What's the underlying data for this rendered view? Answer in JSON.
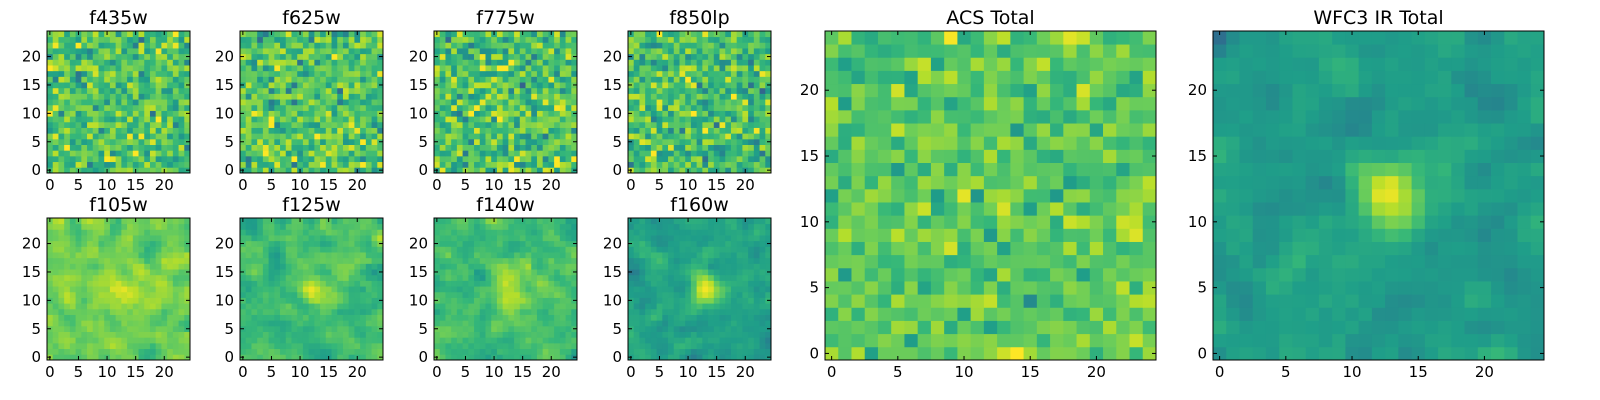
{
  "figure": {
    "colormap": "viridis"
  },
  "chart_data": [
    {
      "type": "heatmap",
      "title": "f435w",
      "grid_size": 25,
      "xlim": [
        -0.5,
        24.5
      ],
      "ylim": [
        -0.5,
        24.5
      ],
      "xticks": [
        0,
        5,
        10,
        15,
        20
      ],
      "yticks": [
        0,
        5,
        10,
        15,
        20
      ],
      "texture": "noise",
      "mean": 0.72,
      "spread": 0.24,
      "source": null,
      "seed": 11
    },
    {
      "type": "heatmap",
      "title": "f625w",
      "grid_size": 25,
      "xlim": [
        -0.5,
        24.5
      ],
      "ylim": [
        -0.5,
        24.5
      ],
      "xticks": [
        0,
        5,
        10,
        15,
        20
      ],
      "yticks": [
        0,
        5,
        10,
        15,
        20
      ],
      "texture": "noise",
      "mean": 0.72,
      "spread": 0.24,
      "source": null,
      "seed": 23
    },
    {
      "type": "heatmap",
      "title": "f775w",
      "grid_size": 25,
      "xlim": [
        -0.5,
        24.5
      ],
      "ylim": [
        -0.5,
        24.5
      ],
      "xticks": [
        0,
        5,
        10,
        15,
        20
      ],
      "yticks": [
        0,
        5,
        10,
        15,
        20
      ],
      "texture": "noise",
      "mean": 0.72,
      "spread": 0.26,
      "source": null,
      "seed": 37
    },
    {
      "type": "heatmap",
      "title": "f850lp",
      "grid_size": 25,
      "xlim": [
        -0.5,
        24.5
      ],
      "ylim": [
        -0.5,
        24.5
      ],
      "xticks": [
        0,
        5,
        10,
        15,
        20
      ],
      "yticks": [
        0,
        5,
        10,
        15,
        20
      ],
      "texture": "noise",
      "mean": 0.7,
      "spread": 0.26,
      "source": null,
      "seed": 41
    },
    {
      "type": "heatmap",
      "title": "f105w",
      "grid_size": 25,
      "xlim": [
        -0.5,
        24.5
      ],
      "ylim": [
        -0.5,
        24.5
      ],
      "xticks": [
        0,
        5,
        10,
        15,
        20
      ],
      "yticks": [
        0,
        5,
        10,
        15,
        20
      ],
      "texture": "smooth",
      "mean": 0.78,
      "spread": 0.18,
      "source": {
        "x": 13,
        "y": 12,
        "sigma": 2.2,
        "amp": 0.15
      },
      "seed": 53
    },
    {
      "type": "heatmap",
      "title": "f125w",
      "grid_size": 25,
      "xlim": [
        -0.5,
        24.5
      ],
      "ylim": [
        -0.5,
        24.5
      ],
      "xticks": [
        0,
        5,
        10,
        15,
        20
      ],
      "yticks": [
        0,
        5,
        10,
        15,
        20
      ],
      "texture": "smooth",
      "mean": 0.68,
      "spread": 0.18,
      "source": {
        "x": 13,
        "y": 11.5,
        "sigma": 2.2,
        "amp": 0.22
      },
      "seed": 61
    },
    {
      "type": "heatmap",
      "title": "f140w",
      "grid_size": 25,
      "xlim": [
        -0.5,
        24.5
      ],
      "ylim": [
        -0.5,
        24.5
      ],
      "xticks": [
        0,
        5,
        10,
        15,
        20
      ],
      "yticks": [
        0,
        5,
        10,
        15,
        20
      ],
      "texture": "smooth",
      "mean": 0.7,
      "spread": 0.18,
      "source": {
        "x": 13,
        "y": 12,
        "sigma": 2.0,
        "amp": 0.22
      },
      "seed": 73
    },
    {
      "type": "heatmap",
      "title": "f160w",
      "grid_size": 25,
      "xlim": [
        -0.5,
        24.5
      ],
      "ylim": [
        -0.5,
        24.5
      ],
      "xticks": [
        0,
        5,
        10,
        15,
        20
      ],
      "yticks": [
        0,
        5,
        10,
        15,
        20
      ],
      "texture": "smooth",
      "mean": 0.58,
      "spread": 0.16,
      "source": {
        "x": 13,
        "y": 12,
        "sigma": 1.8,
        "amp": 0.4
      },
      "seed": 89
    },
    {
      "type": "heatmap",
      "title": "ACS Total",
      "grid_size": 25,
      "xlim": [
        -0.5,
        24.5
      ],
      "ylim": [
        -0.5,
        24.5
      ],
      "xticks": [
        0,
        5,
        10,
        15,
        20
      ],
      "yticks": [
        0,
        5,
        10,
        15,
        20
      ],
      "texture": "noise",
      "mean": 0.74,
      "spread": 0.18,
      "source": null,
      "seed": 97
    },
    {
      "type": "heatmap",
      "title": "WFC3 IR Total",
      "grid_size": 25,
      "xlim": [
        -0.5,
        24.5
      ],
      "ylim": [
        -0.5,
        24.5
      ],
      "xticks": [
        0,
        5,
        10,
        15,
        20
      ],
      "yticks": [
        0,
        5,
        10,
        15,
        20
      ],
      "texture": "smooth",
      "mean": 0.55,
      "spread": 0.14,
      "source": {
        "x": 13,
        "y": 12,
        "sigma": 1.8,
        "amp": 0.45
      },
      "seed": 101
    }
  ]
}
